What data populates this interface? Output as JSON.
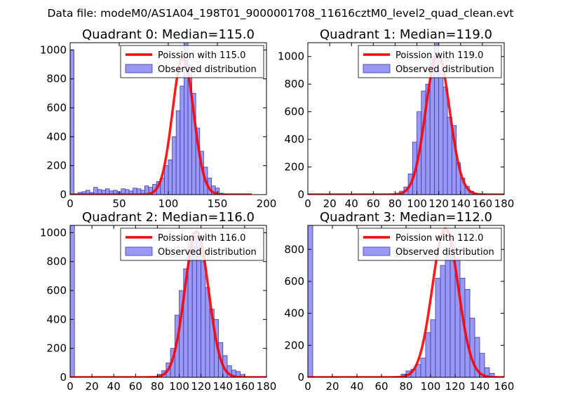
{
  "figure": {
    "suptitle": "Data file: modeM0/AS1A04_198T01_9000001708_11616cztM0_level2_quad_clean.evt",
    "colors": {
      "bar_fill": "#8080f0",
      "bar_edge": "#3b3bb0",
      "poisson_line": "#ff0000"
    }
  },
  "chart_data": [
    {
      "type": "bar",
      "title": "Quadrant 0: Median=115.0",
      "median": 115.0,
      "bin_width": 4,
      "xlim": [
        0,
        200
      ],
      "ylim": [
        0,
        1050
      ],
      "xticks": [
        0,
        50,
        100,
        150,
        200
      ],
      "yticks": [
        0,
        200,
        400,
        600,
        800,
        1000
      ],
      "legend": {
        "line": "Poission with 115.0",
        "bars": "Observed distribution",
        "location": "upper right"
      },
      "bins": [
        0,
        4,
        8,
        12,
        16,
        20,
        24,
        28,
        32,
        36,
        40,
        44,
        48,
        52,
        56,
        60,
        64,
        68,
        72,
        76,
        80,
        84,
        88,
        92,
        96,
        100,
        104,
        108,
        112,
        116,
        120,
        124,
        128,
        132,
        136,
        140,
        144,
        148,
        152,
        156
      ],
      "values": [
        1000,
        6,
        15,
        20,
        30,
        15,
        50,
        35,
        30,
        40,
        25,
        30,
        20,
        40,
        35,
        25,
        45,
        40,
        30,
        60,
        50,
        70,
        90,
        115,
        200,
        240,
        400,
        580,
        750,
        1050,
        900,
        700,
        460,
        300,
        190,
        115,
        60,
        45,
        10,
        5
      ],
      "poisson_lambda": 115.0,
      "poisson_peak": 950,
      "poisson_range": [
        0,
        185
      ]
    },
    {
      "type": "bar",
      "title": "Quadrant 1: Median=119.0",
      "median": 119.0,
      "bin_width": 4,
      "xlim": [
        0,
        180
      ],
      "ylim": [
        0,
        1100
      ],
      "xticks": [
        0,
        20,
        40,
        60,
        80,
        100,
        120,
        140,
        160,
        180
      ],
      "yticks": [
        0,
        200,
        400,
        600,
        800,
        1000
      ],
      "legend": {
        "line": "Poission with 119.0",
        "bars": "Observed distribution",
        "location": "upper right"
      },
      "bins": [
        0,
        80,
        84,
        88,
        92,
        96,
        100,
        104,
        108,
        112,
        116,
        120,
        124,
        128,
        132,
        136,
        140,
        144,
        148,
        152,
        156,
        160
      ],
      "values": [
        5,
        10,
        25,
        55,
        150,
        380,
        600,
        750,
        800,
        1000,
        1100,
        900,
        780,
        560,
        500,
        230,
        120,
        60,
        25,
        10,
        5,
        3
      ],
      "poisson_lambda": 119.0,
      "poisson_peak": 1020,
      "poisson_range": [
        0,
        180
      ]
    },
    {
      "type": "bar",
      "title": "Quadrant 2: Median=116.0",
      "median": 116.0,
      "bin_width": 4,
      "xlim": [
        0,
        180
      ],
      "ylim": [
        0,
        1050
      ],
      "xticks": [
        0,
        20,
        40,
        60,
        80,
        100,
        120,
        140,
        160,
        180
      ],
      "yticks": [
        0,
        200,
        400,
        600,
        800,
        1000
      ],
      "legend": {
        "line": "Poission with 116.0",
        "bars": "Observed distribution",
        "location": "upper right"
      },
      "bins": [
        0,
        80,
        84,
        88,
        92,
        96,
        100,
        104,
        108,
        112,
        116,
        120,
        124,
        128,
        132,
        136,
        140,
        144,
        148,
        152,
        156
      ],
      "values": [
        1060,
        20,
        45,
        100,
        200,
        430,
        600,
        750,
        950,
        1000,
        960,
        800,
        620,
        470,
        400,
        240,
        150,
        80,
        50,
        40,
        20
      ],
      "poisson_lambda": 116.0,
      "poisson_peak": 1010,
      "poisson_range": [
        0,
        180
      ]
    },
    {
      "type": "bar",
      "title": "Quadrant 3: Median=112.0",
      "median": 112.0,
      "bin_width": 4,
      "xlim": [
        0,
        160
      ],
      "ylim": [
        0,
        950
      ],
      "xticks": [
        0,
        20,
        40,
        60,
        80,
        100,
        120,
        140,
        160
      ],
      "yticks": [
        0,
        200,
        400,
        600,
        800
      ],
      "legend": {
        "line": "Poission with 112.0",
        "bars": "Observed distribution",
        "location": "upper right"
      },
      "bins": [
        0,
        76,
        80,
        84,
        88,
        92,
        96,
        100,
        104,
        108,
        112,
        116,
        120,
        124,
        128,
        132,
        136,
        140,
        144,
        148
      ],
      "values": [
        960,
        20,
        40,
        50,
        80,
        120,
        280,
        360,
        620,
        700,
        760,
        870,
        740,
        620,
        550,
        370,
        250,
        150,
        60,
        25
      ],
      "poisson_lambda": 112.0,
      "poisson_peak": 930,
      "poisson_range": [
        0,
        160
      ]
    }
  ]
}
